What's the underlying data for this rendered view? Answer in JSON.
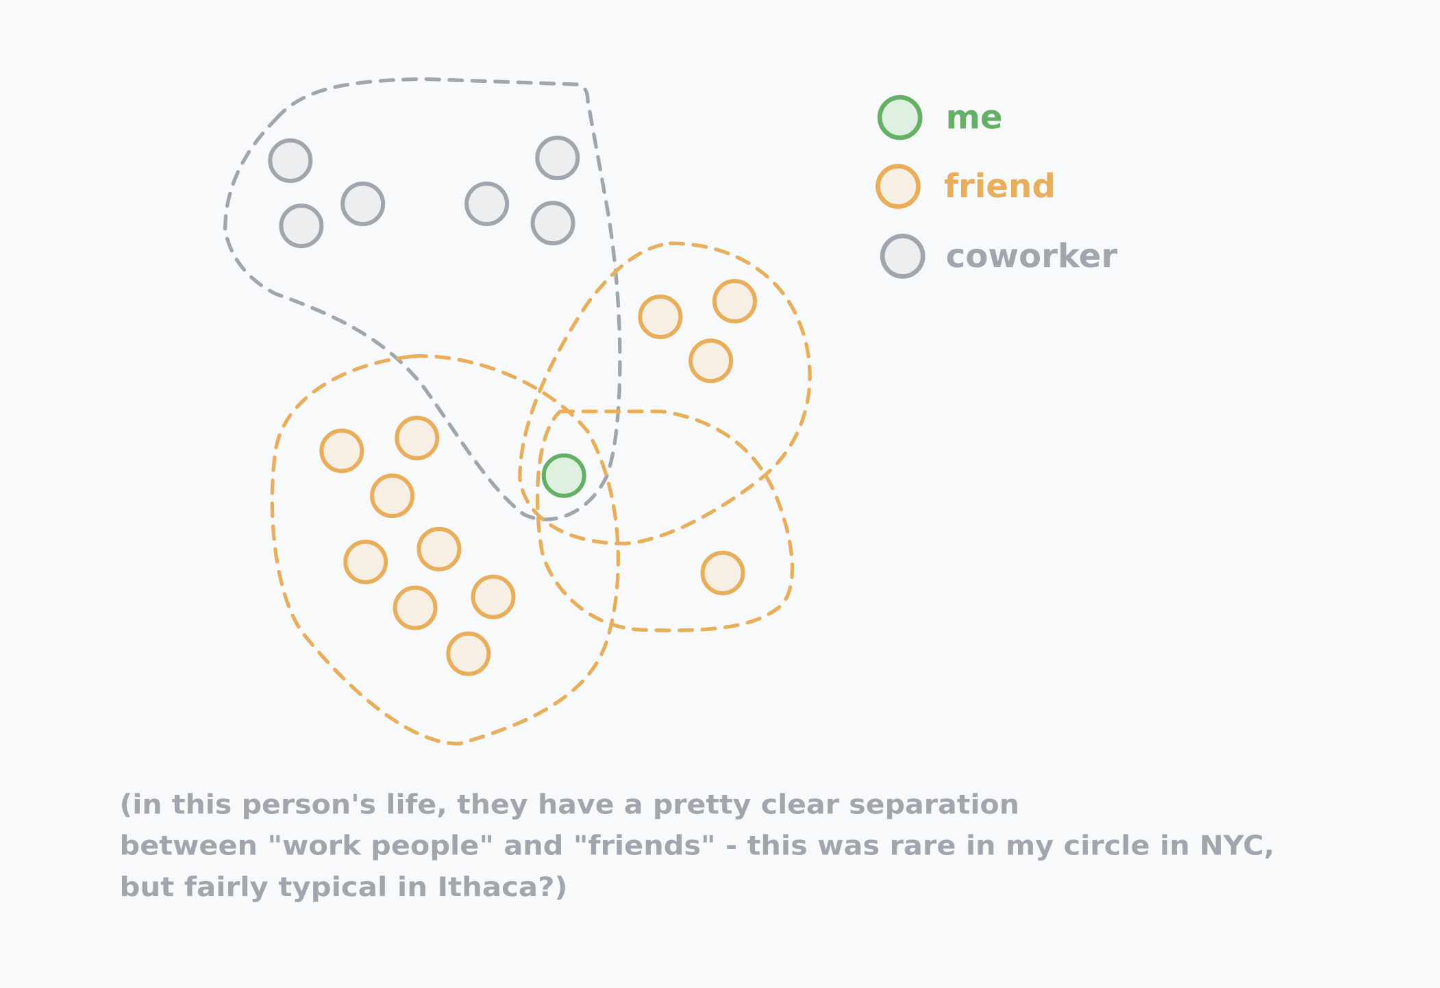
{
  "colors": {
    "background": "#f8f9fb",
    "me_stroke": "#65b065",
    "me_fill": "#dff0e0",
    "friend_stroke": "#e8ae5a",
    "friend_fill": "#f7efe4",
    "coworker_stroke": "#a1a6ae",
    "coworker_fill": "#eceef0"
  },
  "legend": {
    "me": "me",
    "friend": "friend",
    "coworker": "coworker"
  },
  "caption": {
    "line1": "(in this person's life, they have a pretty clear separation",
    "line2": "between \"work people\" and \"friends\" - this was rare in my circle in NYC,",
    "line3": "but fairly typical in Ithaca?)"
  }
}
